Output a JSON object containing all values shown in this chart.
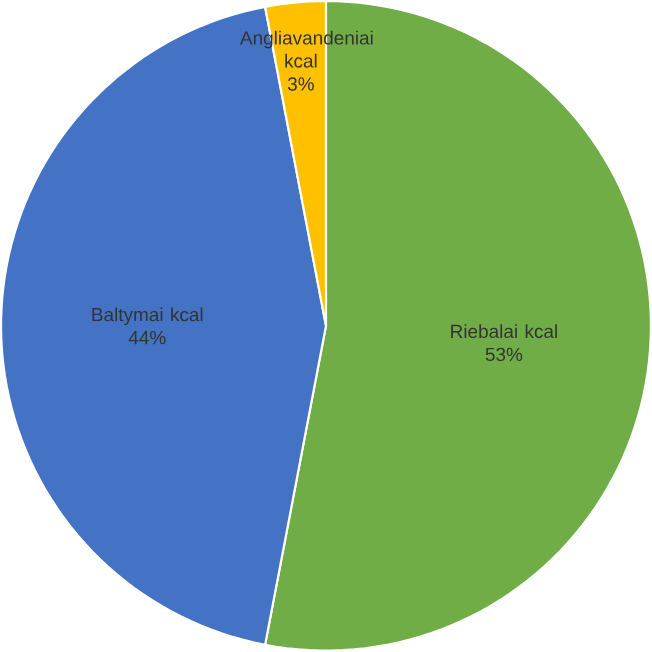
{
  "chart_data": {
    "type": "pie",
    "categories": [
      "Riebalai kcal",
      "Baltymai kcal",
      "Angliavandeniai kcal"
    ],
    "values": [
      53,
      44,
      3
    ],
    "colors": [
      "#70ad47",
      "#4472c4",
      "#ffc000"
    ],
    "value_labels": [
      "53%",
      "44%",
      "3%"
    ]
  }
}
